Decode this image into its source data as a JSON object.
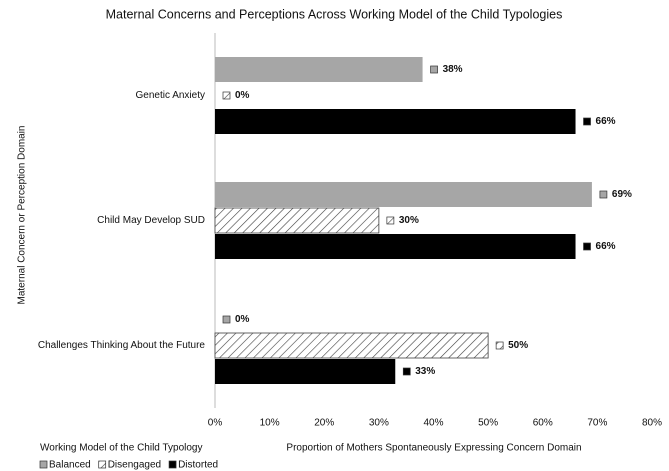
{
  "chart_data": {
    "type": "hbar",
    "title": "Maternal Concerns and Perceptions Across Working Model of the Child Typologies",
    "x_label": "Proportion of Mothers Spontaneously Expressing Concern Domain",
    "y_label": "Maternal Concern or Perception Domain",
    "legend_title": "Working Model of the Child Typology",
    "legend": "bottom-left",
    "categories": [
      "Genetic Anxiety",
      "Child May Develop SUD",
      "Challenges Thinking About the Future"
    ],
    "series": [
      {
        "name": "Balanced",
        "color": "#a6a6a6",
        "pattern": "solid",
        "values": [
          38,
          69,
          0
        ],
        "value_labels": [
          "38%",
          "69%",
          "0%"
        ]
      },
      {
        "name": "Disengaged",
        "color": "#404040",
        "pattern": "hatch",
        "values": [
          0,
          30,
          50
        ],
        "value_labels": [
          "0%",
          "30%",
          "50%"
        ]
      },
      {
        "name": "Distorted",
        "color": "#000000",
        "pattern": "solid",
        "values": [
          66,
          66,
          33
        ],
        "value_labels": [
          "66%",
          "66%",
          "33%"
        ]
      }
    ],
    "xlim": [
      0,
      80
    ],
    "xticks": [
      {
        "value": 0,
        "label": "0%"
      },
      {
        "value": 10,
        "label": "10%"
      },
      {
        "value": 20,
        "label": "20%"
      },
      {
        "value": 30,
        "label": "30%"
      },
      {
        "value": 40,
        "label": "40%"
      },
      {
        "value": 50,
        "label": "50%"
      },
      {
        "value": 60,
        "label": "60%"
      },
      {
        "value": 70,
        "label": "70%"
      },
      {
        "value": 80,
        "label": "80%"
      }
    ]
  }
}
